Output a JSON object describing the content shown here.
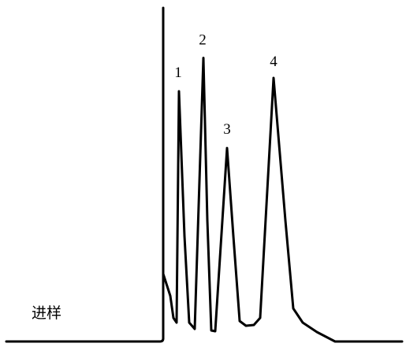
{
  "chart_data": {
    "type": "line",
    "injection_label": "进样",
    "peaks": [
      {
        "label": "1",
        "apex": 0.75
      },
      {
        "label": "2",
        "apex": 0.85
      },
      {
        "label": "3",
        "apex": 0.58
      },
      {
        "label": "4",
        "apex": 0.79
      }
    ],
    "injection_spike": 1.0,
    "grid": false,
    "legend": "none",
    "axes_shown": false,
    "colors": {
      "line": "#000000",
      "background": "#ffffff"
    }
  }
}
